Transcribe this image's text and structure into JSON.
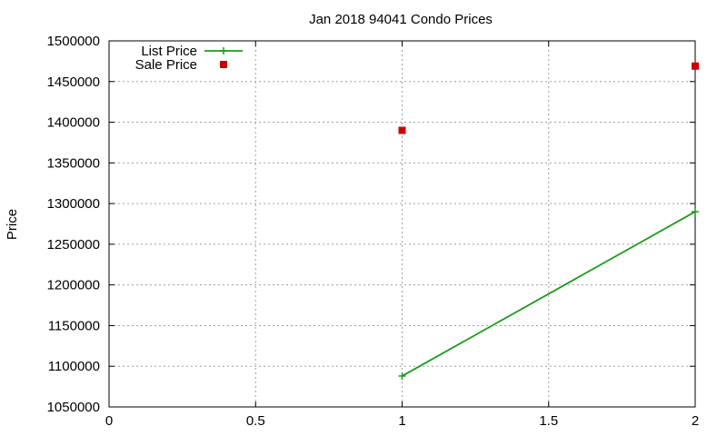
{
  "chart_data": {
    "type": "line",
    "title": "Jan 2018 94041 Condo Prices",
    "xlabel": "",
    "ylabel": "Price",
    "xlim": [
      0,
      2
    ],
    "ylim": [
      1050000,
      1500000
    ],
    "x_ticks": [
      "0",
      "0.5",
      "1",
      "1.5",
      "2"
    ],
    "y_ticks": [
      "1050000",
      "1100000",
      "1150000",
      "1200000",
      "1250000",
      "1300000",
      "1350000",
      "1400000",
      "1450000",
      "1500000"
    ],
    "grid": true,
    "legend_position": "top-left",
    "series": [
      {
        "name": "List Price",
        "style": "line+plus",
        "color": "#1a9c1a",
        "x": [
          1,
          2
        ],
        "y": [
          1088000,
          1290000
        ]
      },
      {
        "name": "Sale Price",
        "style": "square-points",
        "color": "#cc0000",
        "x": [
          1,
          2
        ],
        "y": [
          1390000,
          1469000
        ]
      }
    ]
  }
}
